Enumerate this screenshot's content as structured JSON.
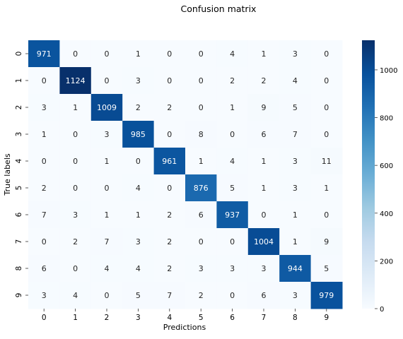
{
  "chart_data": {
    "type": "heatmap",
    "title": "Confusion matrix",
    "xlabel": "Predictions",
    "ylabel": "True labels",
    "x_categories": [
      "0",
      "1",
      "2",
      "3",
      "4",
      "5",
      "6",
      "7",
      "8",
      "9"
    ],
    "y_categories": [
      "0",
      "1",
      "2",
      "3",
      "4",
      "5",
      "6",
      "7",
      "8",
      "9"
    ],
    "values": [
      [
        971,
        0,
        0,
        1,
        0,
        0,
        4,
        1,
        3,
        0
      ],
      [
        0,
        1124,
        0,
        3,
        0,
        0,
        2,
        2,
        4,
        0
      ],
      [
        3,
        1,
        1009,
        2,
        2,
        0,
        1,
        9,
        5,
        0
      ],
      [
        1,
        0,
        3,
        985,
        0,
        8,
        0,
        6,
        7,
        0
      ],
      [
        0,
        0,
        1,
        0,
        961,
        1,
        4,
        1,
        3,
        11
      ],
      [
        2,
        0,
        0,
        4,
        0,
        876,
        5,
        1,
        3,
        1
      ],
      [
        7,
        3,
        1,
        1,
        2,
        6,
        937,
        0,
        1,
        0
      ],
      [
        0,
        2,
        7,
        3,
        2,
        0,
        0,
        1004,
        1,
        9
      ],
      [
        6,
        0,
        4,
        4,
        2,
        3,
        3,
        3,
        944,
        5
      ],
      [
        3,
        4,
        0,
        5,
        7,
        2,
        0,
        6,
        3,
        979
      ]
    ],
    "colormap": "Blues",
    "color_min": "#f7fbff",
    "color_max": "#08306b",
    "vmin": 0,
    "vmax": 1124,
    "colorbar_ticks": [
      0,
      200,
      400,
      600,
      800,
      1000
    ],
    "colorbar_position": "right",
    "annotations": true
  }
}
